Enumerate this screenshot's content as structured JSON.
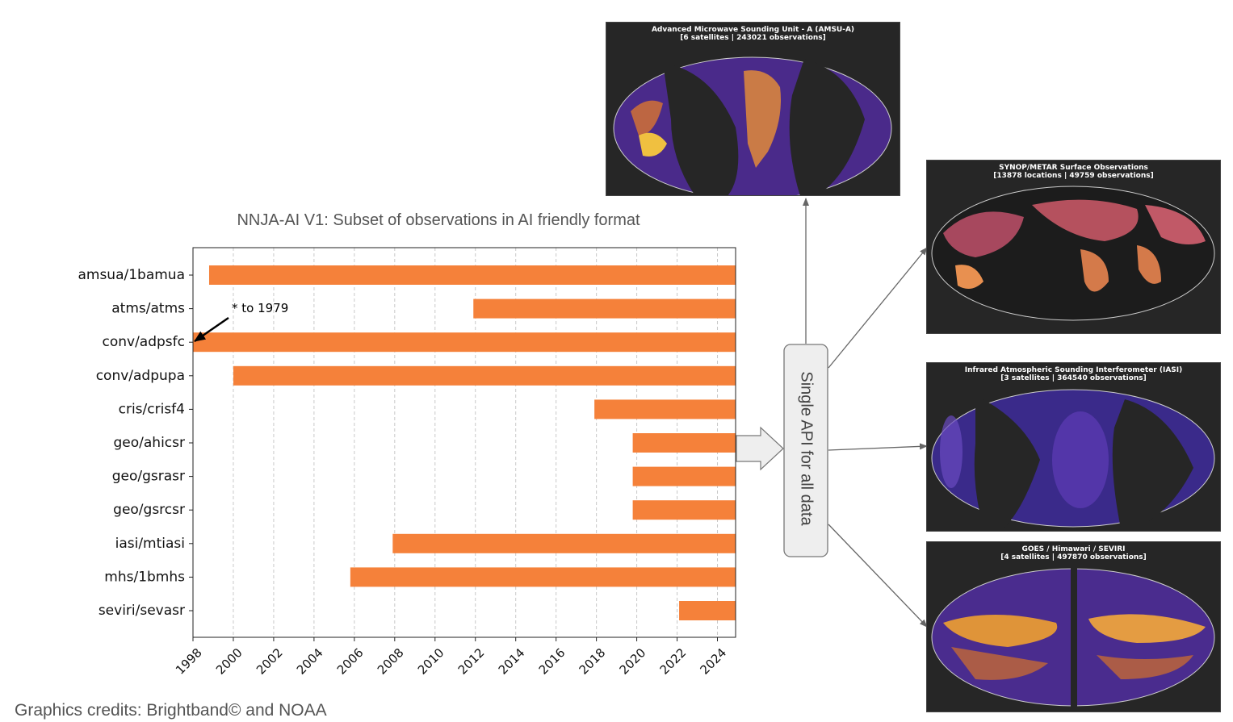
{
  "chart_data": {
    "type": "bar",
    "title": "NNJA-AI V1: Subset of observations in AI friendly format",
    "categories": [
      "amsua/1bamua",
      "atms/atms",
      "conv/adpsfc",
      "conv/adpupa",
      "cris/crisf4",
      "geo/ahicsr",
      "geo/gsrasr",
      "geo/gsrcsr",
      "iasi/mtiasi",
      "mhs/1bmhs",
      "seviri/sevasr"
    ],
    "series": [
      {
        "start": [
          1998.8,
          2011.9,
          1998.0,
          2000.0,
          2017.9,
          2019.8,
          2019.8,
          2019.8,
          2007.9,
          2005.8,
          2022.1
        ],
        "end": [
          2024.9,
          2024.9,
          2024.9,
          2024.9,
          2024.9,
          2024.9,
          2024.9,
          2024.9,
          2024.9,
          2024.9,
          2024.9
        ]
      }
    ],
    "xlim": [
      1998,
      2024.9
    ],
    "xticks": [
      "1998",
      "2000",
      "2002",
      "2004",
      "2006",
      "2008",
      "2010",
      "2012",
      "2014",
      "2016",
      "2018",
      "2020",
      "2022",
      "2024"
    ],
    "grid": "vertical dashed",
    "bar_color": "#f5813a",
    "annotation": {
      "text": "* to 1979",
      "target": "conv/adpsfc"
    }
  },
  "api_box": {
    "label": "Single API for all data"
  },
  "panels": [
    {
      "title_line1": "Advanced Microwave Sounding Unit - A (AMSU-A)",
      "title_line2": "[6 satellites | 243021 observations]"
    },
    {
      "title_line1": "SYNOP/METAR Surface Observations",
      "title_line2": "[13878 locations | 49759 observations]"
    },
    {
      "title_line1": "Infrared Atmospheric Sounding Interferometer (IASI)",
      "title_line2": "[3 satellites | 364540 observations]"
    },
    {
      "title_line1": "GOES / Himawari / SEVIRI",
      "title_line2": "[4 satellites | 497870 observations]"
    }
  ],
  "credit": "Graphics credits: Brightband© and NOAA",
  "colors": {
    "bar": "#f5813a",
    "panel_bg": "#262626",
    "arrow": "#666666"
  }
}
